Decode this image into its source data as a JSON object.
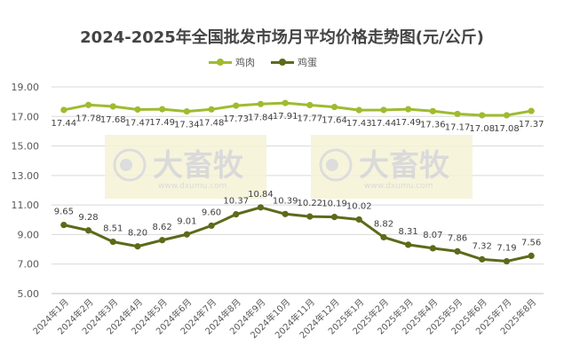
{
  "chart_data": {
    "type": "line",
    "title": "2024-2025年全国批发市场月平均价格走势图(元/公斤)",
    "categories": [
      "2024年1月",
      "2024年2月",
      "2024年3月",
      "2024年4月",
      "2024年5月",
      "2024年6月",
      "2024年7月",
      "2024年8月",
      "2024年9月",
      "2024年10月",
      "2024年11月",
      "2024年12月",
      "2025年1月",
      "2025年2月",
      "2025年3月",
      "2025年4月",
      "2025年5月",
      "2025年6月",
      "2025年7月",
      "2025年8月"
    ],
    "series": [
      {
        "name": "鸡肉",
        "color": "#9fbb2f",
        "values": [
          17.44,
          17.78,
          17.68,
          17.47,
          17.49,
          17.34,
          17.48,
          17.73,
          17.84,
          17.91,
          17.77,
          17.64,
          17.43,
          17.44,
          17.49,
          17.36,
          17.17,
          17.08,
          17.08,
          17.37
        ]
      },
      {
        "name": "鸡蛋",
        "color": "#5b6b1a",
        "values": [
          9.65,
          9.28,
          8.51,
          8.2,
          8.62,
          9.01,
          9.6,
          10.37,
          10.84,
          10.39,
          10.22,
          10.19,
          10.02,
          8.82,
          8.31,
          8.07,
          7.86,
          7.32,
          7.19,
          7.56
        ]
      }
    ],
    "ylim": [
      5.0,
      19.0
    ],
    "yticks": [
      "5.00",
      "7.00",
      "9.00",
      "11.00",
      "13.00",
      "15.00",
      "17.00",
      "19.00"
    ],
    "grid": true,
    "legend": "top",
    "watermark": {
      "brand": "大畜牧",
      "url": "www.dxumu.com"
    }
  }
}
